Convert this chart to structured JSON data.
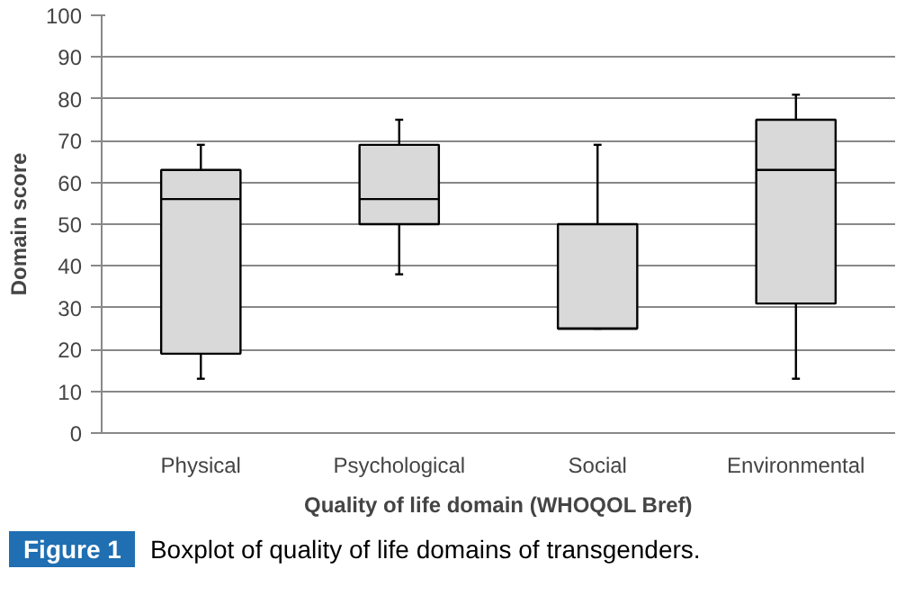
{
  "chart_data": {
    "type": "box",
    "xlabel": "Quality of life domain (WHOQOL Bref)",
    "ylabel": "Domain score",
    "categories": [
      "Physical",
      "Psychological",
      "Social",
      "Environmental"
    ],
    "boxes": [
      {
        "low": 13,
        "q1": 19,
        "median": 56,
        "q3": 63,
        "high": 69
      },
      {
        "low": 38,
        "q1": 50,
        "median": 56,
        "q3": 69,
        "high": 75
      },
      {
        "low": 25,
        "q1": 25,
        "median": 25,
        "q3": 50,
        "high": 69
      },
      {
        "low": 13,
        "q1": 31,
        "median": 63,
        "q3": 75,
        "high": 81
      }
    ],
    "color": "#d9d9d9",
    "ylim": [
      0,
      100
    ],
    "yticks": [
      0,
      10,
      20,
      30,
      40,
      50,
      60,
      70,
      80,
      90,
      100
    ],
    "grid": "y",
    "annotations": [
      "Figure 1",
      "Boxplot of quality of life domains of transgenders."
    ]
  }
}
